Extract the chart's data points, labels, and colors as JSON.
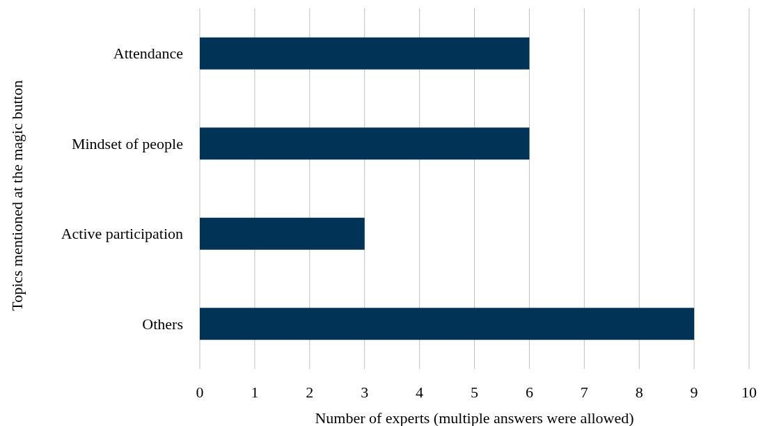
{
  "chart_data": {
    "type": "bar",
    "orientation": "horizontal",
    "categories": [
      "Attendance",
      "Mindset of people",
      "Active participation",
      "Others"
    ],
    "values": [
      6,
      6,
      3,
      9
    ],
    "color": "#003356",
    "xlim": [
      0,
      10
    ],
    "xticks": [
      0,
      1,
      2,
      3,
      4,
      5,
      6,
      7,
      8,
      9,
      10
    ],
    "xlabel": "Number of experts (multiple answers were allowed)",
    "ylabel": "Topics mentioned at the magic button",
    "grid": "x"
  }
}
